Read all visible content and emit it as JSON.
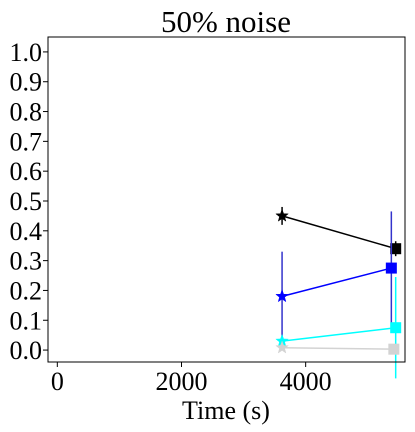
{
  "chart_data": {
    "type": "line",
    "title": "50% noise",
    "xlabel": "Time (s)",
    "ylabel": "",
    "xlim": [
      -150,
      5600
    ],
    "ylim": [
      -0.04,
      1.05
    ],
    "xticks": [
      0,
      2000,
      4000
    ],
    "xtick_labels": [
      "0",
      "2000",
      "4000"
    ],
    "yticks": [
      0.0,
      0.1,
      0.2,
      0.3,
      0.4,
      0.5,
      0.6,
      0.7,
      0.8,
      0.9,
      1.0
    ],
    "ytick_labels": [
      "0.0",
      "0.1",
      "0.2",
      "0.3",
      "0.4",
      "0.5",
      "0.6",
      "0.7",
      "0.8",
      "0.9",
      "1.0"
    ],
    "grid": false,
    "series": [
      {
        "color": "#000000",
        "points": [
          {
            "x": 3620,
            "y": 0.45,
            "err": 0.03,
            "marker": "star"
          },
          {
            "x": 5450,
            "y": 0.34,
            "err": 0.025,
            "marker": "square"
          }
        ]
      },
      {
        "color": "#0000ff",
        "bar_color": "#3333cc",
        "points": [
          {
            "x": 3620,
            "y": 0.18,
            "err": 0.15,
            "marker": "star"
          },
          {
            "x": 5380,
            "y": 0.275,
            "err": 0.19,
            "marker": "square"
          }
        ]
      },
      {
        "color": "#00ffff",
        "points": [
          {
            "x": 3620,
            "y": 0.03,
            "err": 0.01,
            "marker": "star"
          },
          {
            "x": 5450,
            "y": 0.075,
            "err": 0.17,
            "marker": "square"
          }
        ]
      },
      {
        "color": "#d3d3d3",
        "points": [
          {
            "x": 3620,
            "y": 0.008,
            "err": 0.005,
            "marker": "star"
          },
          {
            "x": 5420,
            "y": 0.003,
            "err": 0.005,
            "marker": "square"
          }
        ]
      }
    ]
  }
}
